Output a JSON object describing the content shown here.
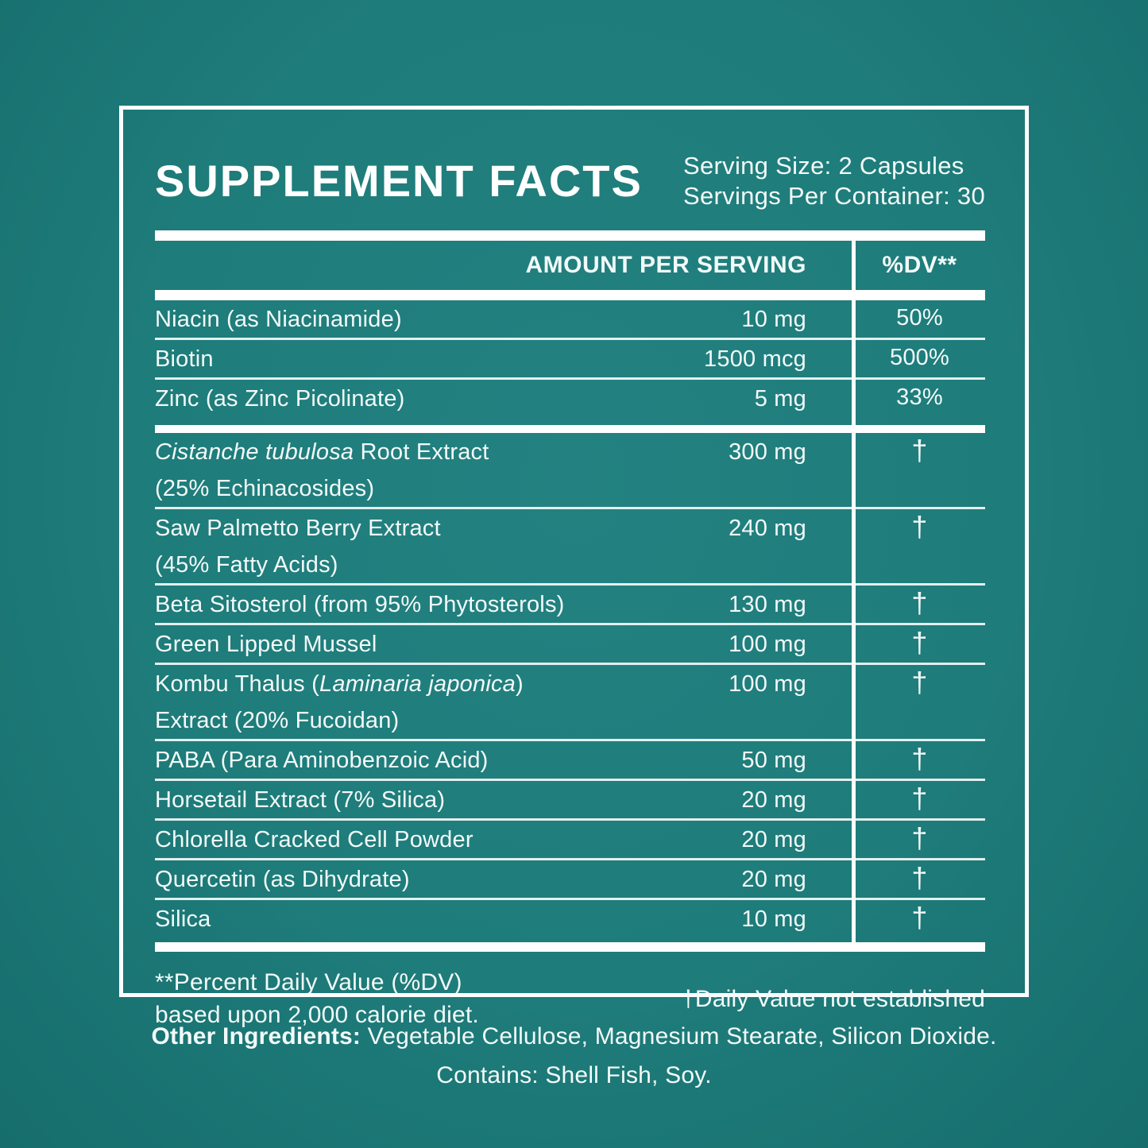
{
  "panel": {
    "title": "SUPPLEMENT FACTS",
    "serving_size": "Serving Size: 2 Capsules",
    "servings_per_container": "Servings Per Container: 30"
  },
  "table": {
    "columns": {
      "amount": "AMOUNT PER SERVING",
      "dv": "%DV**"
    },
    "groups": [
      {
        "rows": [
          {
            "name": [
              {
                "text": "Niacin (as Niacinamide)"
              }
            ],
            "amount": "10 mg",
            "dv": "50%"
          },
          {
            "name": [
              {
                "text": "Biotin"
              }
            ],
            "amount": "1500 mcg",
            "dv": "500%"
          },
          {
            "name": [
              {
                "text": "Zinc (as Zinc Picolinate)"
              }
            ],
            "amount": "5 mg",
            "dv": "33%"
          }
        ]
      },
      {
        "rows": [
          {
            "name": [
              {
                "text": "Cistanche tubulosa",
                "italic": true
              },
              {
                "text": " Root Extract"
              }
            ],
            "name2": "(25% Echinacosides)",
            "amount": "300 mg",
            "dv": "†"
          },
          {
            "name": [
              {
                "text": "Saw Palmetto Berry Extract"
              }
            ],
            "name2": "(45% Fatty Acids)",
            "amount": "240 mg",
            "dv": "†"
          },
          {
            "name": [
              {
                "text": "Beta Sitosterol (from 95% Phytosterols)"
              }
            ],
            "amount": "130 mg",
            "dv": "†"
          },
          {
            "name": [
              {
                "text": "Green Lipped Mussel"
              }
            ],
            "amount": "100 mg",
            "dv": "†"
          },
          {
            "name": [
              {
                "text": "Kombu Thalus ("
              },
              {
                "text": "Laminaria japonica",
                "italic": true
              },
              {
                "text": ")"
              }
            ],
            "name2": "Extract (20% Fucoidan)",
            "amount": "100 mg",
            "dv": "†"
          },
          {
            "name": [
              {
                "text": "PABA (Para Aminobenzoic Acid)"
              }
            ],
            "amount": "50 mg",
            "dv": "†"
          },
          {
            "name": [
              {
                "text": "Horsetail Extract (7% Silica)"
              }
            ],
            "amount": "20 mg",
            "dv": "†"
          },
          {
            "name": [
              {
                "text": "Chlorella Cracked Cell Powder"
              }
            ],
            "amount": "20 mg",
            "dv": "†"
          },
          {
            "name": [
              {
                "text": "Quercetin (as Dihydrate)"
              }
            ],
            "amount": "20 mg",
            "dv": "†"
          },
          {
            "name": [
              {
                "text": "Silica"
              }
            ],
            "amount": "10 mg",
            "dv": "†"
          }
        ]
      }
    ]
  },
  "footnotes": {
    "left_line1": "**Percent Daily Value (%DV)",
    "left_line2": "based upon 2,000 calorie diet.",
    "right": "†Daily Value not established"
  },
  "other_ingredients": {
    "label": "Other Ingredients:",
    "text": " Vegetable Cellulose, Magnesium Stearate, Silicon Dioxide.",
    "contains": "Contains: Shell Fish, Soy."
  },
  "colors": {
    "background": "#1e7c7a",
    "panel_border": "#ffffff",
    "bars": "#ffffff",
    "text": "#f2faf9"
  }
}
